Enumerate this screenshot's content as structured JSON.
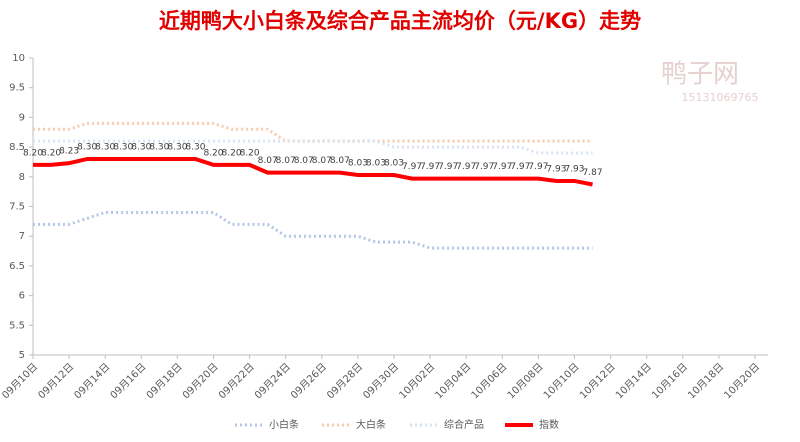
{
  "chart_data": {
    "type": "line",
    "title": "近期鸭大小白条及综合产品主流均价（元/KG）走势",
    "watermark": [
      "鸭子网",
      "15131069765"
    ],
    "categories": [
      "09月10日",
      null,
      "09月12日",
      null,
      "09月14日",
      null,
      "09月16日",
      null,
      "09月18日",
      null,
      "09月20日",
      null,
      "09月22日",
      null,
      "09月24日",
      null,
      "09月26日",
      null,
      "09月28日",
      null,
      "09月30日",
      null,
      "10月02日",
      null,
      "10月04日",
      null,
      "10月06日",
      null,
      "10月08日",
      null,
      "10月10日",
      null,
      "10月12日",
      null,
      "10月14日",
      null,
      "10月16日",
      null,
      "10月18日",
      null,
      "10月20日"
    ],
    "series": [
      {
        "name": "小白条",
        "color": "#b4c7e7",
        "dash": true,
        "width": 3,
        "values": [
          7.2,
          7.2,
          7.2,
          7.3,
          7.4,
          7.4,
          7.4,
          7.4,
          7.4,
          7.4,
          7.4,
          7.2,
          7.2,
          7.2,
          7.0,
          7.0,
          7.0,
          7.0,
          7.0,
          6.9,
          6.9,
          6.9,
          6.8,
          6.8,
          6.8,
          6.8,
          6.8,
          6.8,
          6.8,
          6.8,
          6.8,
          6.8,
          null,
          null,
          null,
          null,
          null,
          null,
          null,
          null,
          null
        ]
      },
      {
        "name": "大白条",
        "color": "#f8cbad",
        "dash": true,
        "width": 3,
        "values": [
          8.8,
          8.8,
          8.8,
          8.9,
          8.9,
          8.9,
          8.9,
          8.9,
          8.9,
          8.9,
          8.9,
          8.8,
          8.8,
          8.8,
          8.6,
          8.6,
          8.6,
          8.6,
          8.6,
          8.6,
          8.6,
          8.6,
          8.6,
          8.6,
          8.6,
          8.6,
          8.6,
          8.6,
          8.6,
          8.6,
          8.6,
          8.6,
          null,
          null,
          null,
          null,
          null,
          null,
          null,
          null,
          null
        ]
      },
      {
        "name": "综合产品",
        "color": "#dae3f3",
        "dash": true,
        "width": 3,
        "values": [
          8.6,
          8.6,
          8.6,
          8.6,
          8.6,
          8.6,
          8.6,
          8.6,
          8.6,
          8.6,
          8.6,
          8.6,
          8.6,
          8.6,
          8.6,
          8.6,
          8.6,
          8.6,
          8.6,
          8.6,
          8.5,
          8.5,
          8.5,
          8.5,
          8.5,
          8.5,
          8.5,
          8.5,
          8.4,
          8.4,
          8.4,
          8.4,
          null,
          null,
          null,
          null,
          null,
          null,
          null,
          null,
          null
        ]
      },
      {
        "name": "指数",
        "color": "#ff0000",
        "dash": false,
        "width": 4,
        "values": [
          8.2,
          8.2,
          8.23,
          8.3,
          8.3,
          8.3,
          8.3,
          8.3,
          8.3,
          8.3,
          8.2,
          8.2,
          8.2,
          8.07,
          8.07,
          8.07,
          8.07,
          8.07,
          8.03,
          8.03,
          8.03,
          7.97,
          7.97,
          7.97,
          7.97,
          7.97,
          7.97,
          7.97,
          7.97,
          7.93,
          7.93,
          7.87,
          null,
          null,
          null,
          null,
          null,
          null,
          null,
          null,
          null
        ],
        "value_labels": [
          "8.20",
          "8.20",
          "8.23",
          "8.30",
          "8.30",
          "8.30",
          "8.30",
          "8.30",
          "8.30",
          "8.30",
          "8.20",
          "8.20",
          "8.20",
          "8.07",
          "8.07",
          "8.07",
          "8.07",
          "8.07",
          "8.03",
          "8.03",
          "8.03",
          "7.97",
          "7.97",
          "7.97",
          "7.97",
          "7.97",
          "7.97",
          "7.97",
          "7.97",
          "7.93",
          "7.93",
          "7.87",
          null,
          null,
          null,
          null,
          null,
          null,
          null,
          null,
          null
        ]
      }
    ],
    "ylim": [
      5,
      10
    ],
    "yticks": [
      5,
      5.5,
      6,
      6.5,
      7,
      7.5,
      8,
      8.5,
      9,
      9.5,
      10
    ],
    "grid": false
  }
}
